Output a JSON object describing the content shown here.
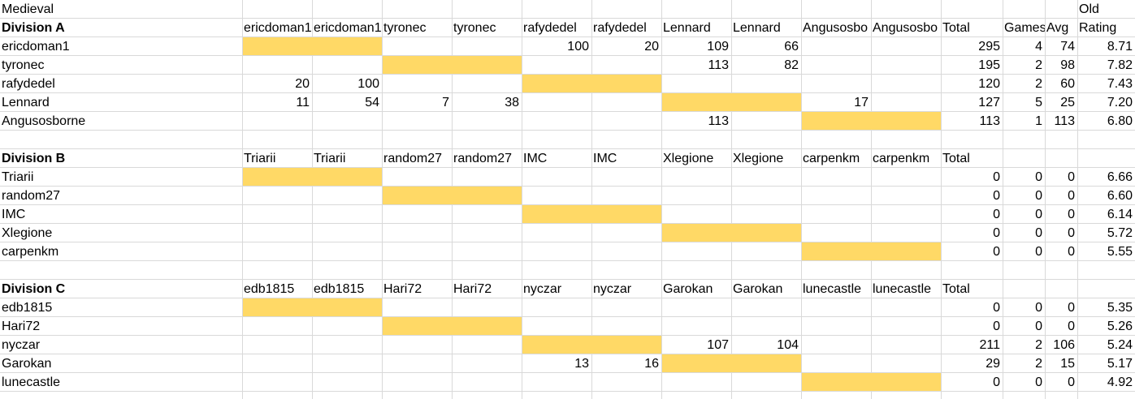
{
  "app": {
    "title": "Medieval"
  },
  "header_labels": {
    "total": "Total",
    "games": "Games",
    "avg": "Avg",
    "old": "Old",
    "rating": "Rating"
  },
  "divisions": [
    {
      "name": "Division A",
      "columns": [
        "ericdoman1",
        "ericdoman1",
        "tyronec",
        "tyronec",
        "rafydedel",
        "rafydedel",
        "Lennard",
        "Lennard",
        "Angusosbo",
        "Angusosbo"
      ],
      "players": [
        {
          "name": "ericdoman1",
          "cells": [
            "",
            "",
            "",
            "",
            "100",
            "20",
            "109",
            "66",
            "",
            ""
          ],
          "total": "295",
          "games": "4",
          "avg": "74",
          "rating": "8.71"
        },
        {
          "name": "tyronec",
          "cells": [
            "",
            "",
            "",
            "",
            "",
            "",
            "113",
            "82",
            "",
            ""
          ],
          "total": "195",
          "games": "2",
          "avg": "98",
          "rating": "7.82"
        },
        {
          "name": "rafydedel",
          "cells": [
            "20",
            "100",
            "",
            "",
            "",
            "",
            "",
            "",
            "",
            ""
          ],
          "total": "120",
          "games": "2",
          "avg": "60",
          "rating": "7.43"
        },
        {
          "name": "Lennard",
          "cells": [
            "11",
            "54",
            "7",
            "38",
            "",
            "",
            "",
            "",
            "17",
            ""
          ],
          "total": "127",
          "games": "5",
          "avg": "25",
          "rating": "7.20"
        },
        {
          "name": "Angusosborne",
          "cells": [
            "",
            "",
            "",
            "",
            "",
            "",
            "113",
            "",
            "",
            ""
          ],
          "total": "113",
          "games": "1",
          "avg": "113",
          "rating": "6.80"
        }
      ]
    },
    {
      "name": "Division B",
      "columns": [
        "Triarii",
        "Triarii",
        "random27",
        "random27",
        "IMC",
        "IMC",
        "Xlegione",
        "Xlegione",
        "carpenkm",
        "carpenkm"
      ],
      "players": [
        {
          "name": "Triarii",
          "cells": [
            "",
            "",
            "",
            "",
            "",
            "",
            "",
            "",
            "",
            ""
          ],
          "total": "0",
          "games": "0",
          "avg": "0",
          "rating": "6.66"
        },
        {
          "name": "random27",
          "cells": [
            "",
            "",
            "",
            "",
            "",
            "",
            "",
            "",
            "",
            ""
          ],
          "total": "0",
          "games": "0",
          "avg": "0",
          "rating": "6.60"
        },
        {
          "name": "IMC",
          "cells": [
            "",
            "",
            "",
            "",
            "",
            "",
            "",
            "",
            "",
            ""
          ],
          "total": "0",
          "games": "0",
          "avg": "0",
          "rating": "6.14"
        },
        {
          "name": "Xlegione",
          "cells": [
            "",
            "",
            "",
            "",
            "",
            "",
            "",
            "",
            "",
            ""
          ],
          "total": "0",
          "games": "0",
          "avg": "0",
          "rating": "5.72"
        },
        {
          "name": "carpenkm",
          "cells": [
            "",
            "",
            "",
            "",
            "",
            "",
            "",
            "",
            "",
            ""
          ],
          "total": "0",
          "games": "0",
          "avg": "0",
          "rating": "5.55"
        }
      ]
    },
    {
      "name": "Division C",
      "columns": [
        "edb1815",
        "edb1815",
        "Hari72",
        "Hari72",
        "nyczar",
        "nyczar",
        "Garokan",
        "Garokan",
        "lunecastle",
        "lunecastle"
      ],
      "players": [
        {
          "name": "edb1815",
          "cells": [
            "",
            "",
            "",
            "",
            "",
            "",
            "",
            "",
            "",
            ""
          ],
          "total": "0",
          "games": "0",
          "avg": "0",
          "rating": "5.35"
        },
        {
          "name": "Hari72",
          "cells": [
            "",
            "",
            "",
            "",
            "",
            "",
            "",
            "",
            "",
            ""
          ],
          "total": "0",
          "games": "0",
          "avg": "0",
          "rating": "5.26"
        },
        {
          "name": "nyczar",
          "cells": [
            "",
            "",
            "",
            "",
            "",
            "",
            "107",
            "104",
            "",
            ""
          ],
          "total": "211",
          "games": "2",
          "avg": "106",
          "rating": "5.24"
        },
        {
          "name": "Garokan",
          "cells": [
            "",
            "",
            "",
            "",
            "13",
            "16",
            "",
            "",
            "",
            ""
          ],
          "total": "29",
          "games": "2",
          "avg": "15",
          "rating": "5.17"
        },
        {
          "name": "lunecastle",
          "cells": [
            "",
            "",
            "",
            "",
            "",
            "",
            "",
            "",
            "",
            ""
          ],
          "total": "0",
          "games": "0",
          "avg": "0",
          "rating": "4.92"
        }
      ]
    }
  ],
  "colors": {
    "highlight": "#ffd966",
    "gridline": "#d9d9d9"
  }
}
